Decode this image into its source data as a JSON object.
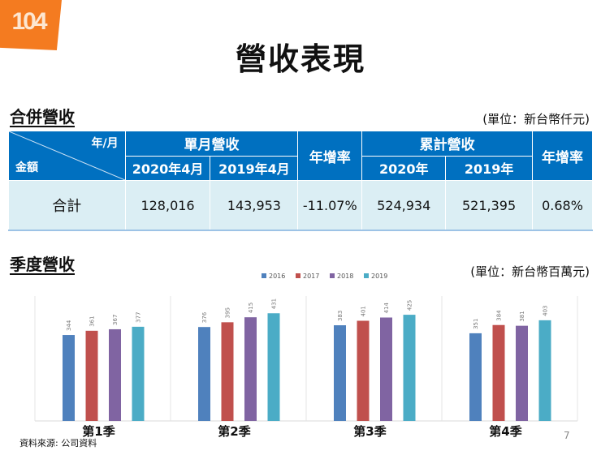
{
  "logo": "104",
  "title": "營收表現",
  "section1": {
    "title": "合併營收",
    "unit": "(單位：新台幣仟元)"
  },
  "table": {
    "corner_top": "年/月",
    "corner_bottom": "金額",
    "group_monthly": "單月營收",
    "group_cumulative": "累計營收",
    "yoy": "年增率",
    "cols": [
      "2020年4月",
      "2019年4月",
      "2020年",
      "2019年"
    ],
    "row": {
      "label": "合計",
      "values": [
        "128,016",
        "143,953",
        "-11.07%",
        "524,934",
        "521,395",
        "0.68%"
      ]
    }
  },
  "section2": {
    "title": "季度營收",
    "unit": "(單位：新台幣百萬元)"
  },
  "chart_data": {
    "type": "bar",
    "categories": [
      "第1季",
      "第2季",
      "第3季",
      "第4季"
    ],
    "series": [
      {
        "name": "2016",
        "color": "#4f81bd",
        "values": [
          344,
          376,
          383,
          351
        ]
      },
      {
        "name": "2017",
        "color": "#c0504d",
        "values": [
          361,
          395,
          401,
          384
        ]
      },
      {
        "name": "2018",
        "color": "#8064a2",
        "values": [
          367,
          415,
          414,
          381
        ]
      },
      {
        "name": "2019",
        "color": "#4bacc6",
        "values": [
          377,
          431,
          425,
          403
        ]
      }
    ],
    "ylim": [
      0,
      480
    ],
    "legend": "top",
    "grid": false
  },
  "source": "資料來源: 公司資料",
  "page_number": "7"
}
